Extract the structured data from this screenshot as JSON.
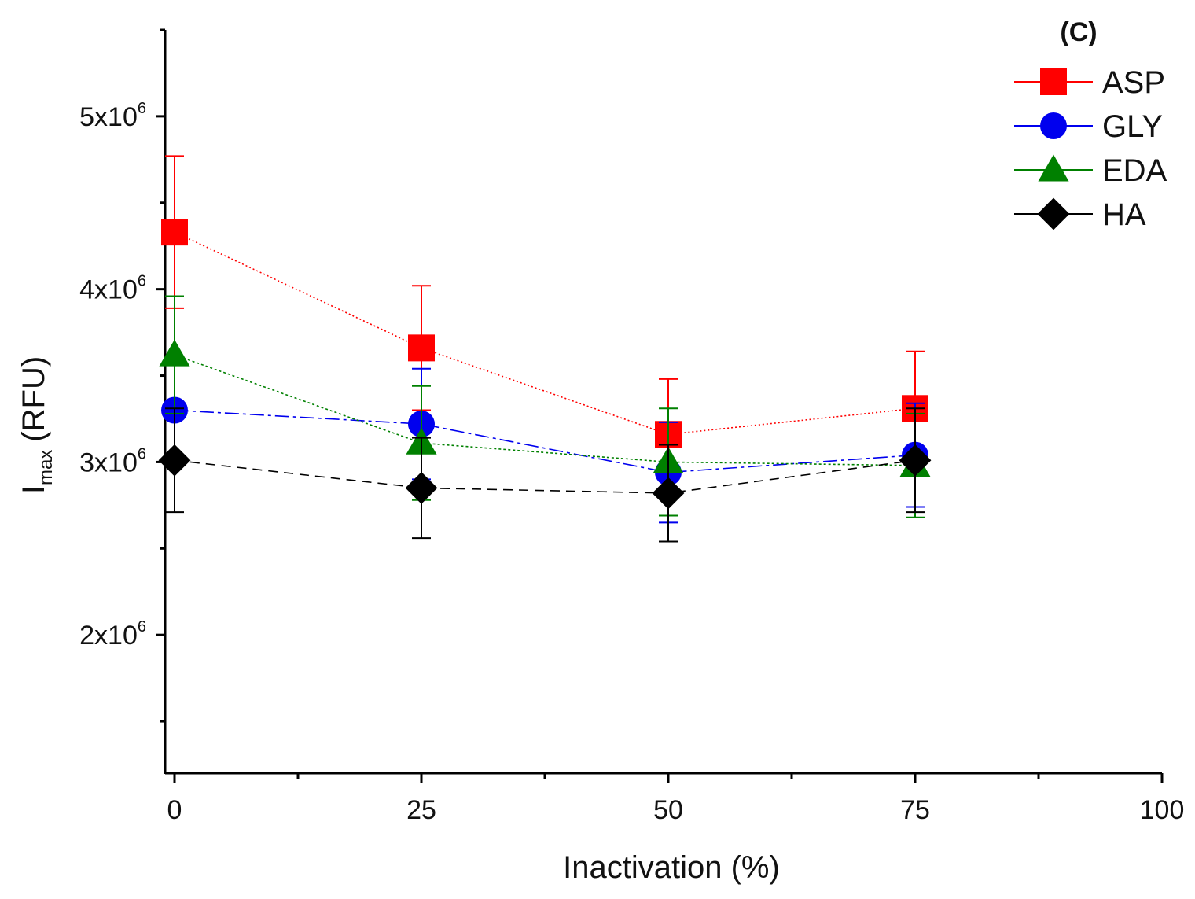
{
  "chart_data": {
    "type": "line",
    "panel_label": "(C)",
    "xlabel": "Inactivation (%)",
    "ylabel_main": "I",
    "ylabel_sub": "max",
    "ylabel_unit": "(RFU)",
    "xlim": [
      0,
      100
    ],
    "ylim": [
      1200000,
      5500000
    ],
    "x_ticks": [
      0,
      25,
      50,
      75,
      100
    ],
    "x_tick_labels": [
      "0",
      "25",
      "50",
      "75",
      "100"
    ],
    "y_ticks": [
      2000000,
      3000000,
      4000000,
      5000000
    ],
    "y_tick_labels": [
      {
        "mantissa": "2x10",
        "exp": "6"
      },
      {
        "mantissa": "3x10",
        "exp": "6"
      },
      {
        "mantissa": "4x10",
        "exp": "6"
      },
      {
        "mantissa": "5x10",
        "exp": "6"
      }
    ],
    "x": [
      0,
      25,
      50,
      75
    ],
    "series": [
      {
        "name": "ASP",
        "color": "#ff0000",
        "marker": "square",
        "dash": "2,3",
        "values": [
          4330000,
          3660000,
          3160000,
          3310000
        ],
        "errors": [
          440000,
          360000,
          320000,
          330000
        ]
      },
      {
        "name": "GLY",
        "color": "#0000ee",
        "marker": "circle",
        "dash": "18,5,4,5",
        "values": [
          3300000,
          3220000,
          2940000,
          3040000
        ],
        "errors": [
          300000,
          320000,
          290000,
          300000
        ]
      },
      {
        "name": "EDA",
        "color": "#008000",
        "marker": "triangle",
        "dash": "3,3",
        "values": [
          3620000,
          3110000,
          3000000,
          2980000
        ],
        "errors": [
          340000,
          330000,
          310000,
          300000
        ]
      },
      {
        "name": "HA",
        "color": "#000000",
        "marker": "diamond",
        "dash": "12,8",
        "values": [
          3010000,
          2850000,
          2820000,
          3010000
        ],
        "errors": [
          300000,
          290000,
          280000,
          300000
        ]
      }
    ],
    "legend_position": "top-right",
    "grid": false
  }
}
